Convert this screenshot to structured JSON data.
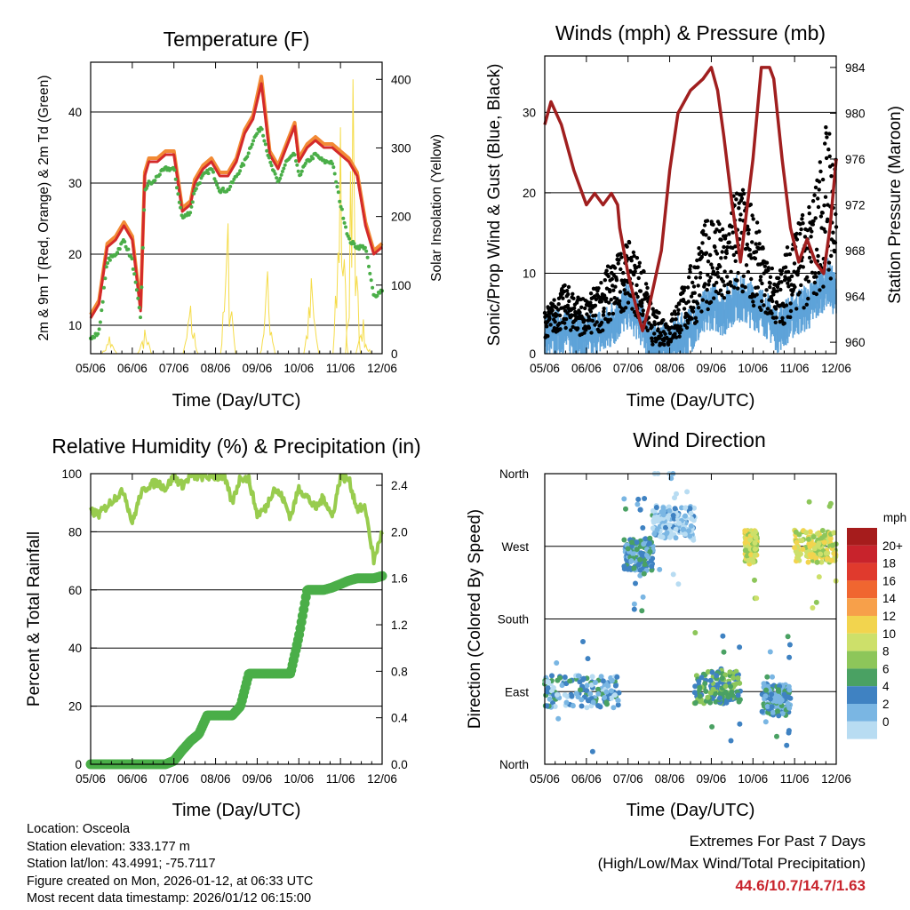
{
  "colors": {
    "temp_2m": "#d42a2a",
    "temp_9m": "#f28a35",
    "dewpoint": "#4aae48",
    "insolation": "#f5dc4a",
    "wind": "#000000",
    "gust": "#5ea3d9",
    "pressure": "#a01f1f",
    "rh": "#98cc4e",
    "precip": "#4aae48"
  },
  "x_tick_labels": [
    "05/06",
    "06/06",
    "07/06",
    "08/06",
    "09/06",
    "10/06",
    "11/06",
    "12/06"
  ],
  "chart_data": [
    {
      "type": "line",
      "id": "temperature",
      "title": "Temperature (F)",
      "xlabel": "Time (Day/UTC)",
      "ylabel": "2m & 9m T (Red, Orange) & 2m Td (Green)",
      "ylabel_right": "Solar Insolation (Yellow)",
      "ylim": [
        6,
        47
      ],
      "yticks": [
        10,
        20,
        30,
        40
      ],
      "ylim_right": [
        0,
        425
      ],
      "yticks_right": [
        0,
        100,
        200,
        300,
        400
      ],
      "x": [
        0,
        0.2,
        0.4,
        0.6,
        0.8,
        1.0,
        1.2,
        1.3,
        1.4,
        1.5,
        1.6,
        1.8,
        2.0,
        2.2,
        2.4,
        2.5,
        2.7,
        2.9,
        3.1,
        3.3,
        3.5,
        3.7,
        3.9,
        4.1,
        4.3,
        4.5,
        4.7,
        4.9,
        5.0,
        5.2,
        5.4,
        5.6,
        5.8,
        6.0,
        6.2,
        6.4,
        6.6,
        6.8,
        7.0
      ],
      "series": [
        {
          "name": "2m T",
          "values": [
            11,
            13,
            21,
            22,
            24,
            22,
            12,
            31,
            33,
            33,
            33,
            34,
            34,
            26,
            27,
            30,
            32,
            33,
            31,
            31,
            33,
            37,
            39,
            44,
            34,
            32,
            35,
            38,
            33,
            35,
            36,
            35,
            35,
            34,
            33,
            31,
            24,
            20,
            21
          ]
        },
        {
          "name": "9m T",
          "values": [
            11.5,
            13.5,
            21.5,
            22.5,
            24.5,
            22.5,
            12.5,
            31.5,
            33.5,
            33.5,
            33.5,
            34.5,
            34.5,
            26.5,
            27.5,
            30.5,
            32.5,
            33.5,
            31.5,
            31.5,
            33.5,
            37.5,
            39.5,
            45,
            34.5,
            32.5,
            35.5,
            38.5,
            33.5,
            35.5,
            36.5,
            35.5,
            35.5,
            34.5,
            33.5,
            31.5,
            24.5,
            20.5,
            21.5
          ]
        },
        {
          "name": "2m Td",
          "values": [
            8,
            9,
            19,
            20,
            22,
            19,
            11,
            29,
            30,
            30,
            31,
            32,
            32,
            25,
            26,
            29,
            31,
            32,
            29,
            29,
            31,
            33,
            36,
            38,
            33,
            30,
            33,
            34,
            31,
            33,
            34,
            33,
            33,
            27,
            22,
            21,
            21,
            14,
            15
          ]
        },
        {
          "name": "Solar Insolation",
          "axis": "right",
          "day_peaks": [
            [
              0.45,
              25
            ],
            [
              1.3,
              35
            ],
            [
              2.4,
              70
            ],
            [
              3.3,
              190
            ],
            [
              4.25,
              120
            ],
            [
              5.3,
              110
            ],
            [
              6.0,
              330
            ],
            [
              6.3,
              400
            ],
            [
              6.55,
              50
            ]
          ]
        }
      ]
    },
    {
      "type": "scatter",
      "id": "winds",
      "title": "Winds (mph) & Pressure (mb)",
      "xlabel": "Time (Day/UTC)",
      "ylabel": "Sonic/Prop Wind & Gust (Blue, Black)",
      "ylabel_right": "Station Pressure (Maroon)",
      "ylim": [
        0,
        37
      ],
      "yticks": [
        0,
        10,
        20,
        30
      ],
      "ylim_right": [
        959,
        985
      ],
      "yticks_right": [
        960,
        964,
        968,
        972,
        976,
        980,
        984
      ],
      "gust_envelope": {
        "x": [
          0,
          0.5,
          1,
          1.5,
          2,
          2.3,
          2.6,
          3,
          3.5,
          4,
          4.3,
          4.6,
          5,
          5.3,
          5.6,
          6,
          6.4,
          6.8,
          7
        ],
        "values": [
          5,
          8,
          6,
          10,
          13,
          11,
          5,
          4,
          10,
          17,
          14,
          20,
          17,
          11,
          9,
          15,
          17,
          28,
          22
        ]
      },
      "wind_envelope": {
        "x": [
          0,
          0.5,
          1,
          1.5,
          2,
          2.3,
          2.6,
          3,
          3.5,
          4,
          4.3,
          4.6,
          5,
          5.3,
          5.6,
          6,
          6.4,
          6.8,
          7
        ],
        "values": [
          2,
          3,
          2,
          3,
          6,
          4,
          1,
          1,
          3,
          6,
          5,
          7,
          6,
          5,
          3,
          5,
          6,
          9,
          7
        ]
      },
      "series": [
        {
          "name": "Station Pressure",
          "axis": "right",
          "x": [
            0,
            0.15,
            0.4,
            0.7,
            0.9,
            1.0,
            1.2,
            1.4,
            1.6,
            1.75,
            1.8,
            2.0,
            2.2,
            2.35,
            2.5,
            2.8,
            3.0,
            3.2,
            3.5,
            3.8,
            4.0,
            4.15,
            4.3,
            4.5,
            4.7,
            5.0,
            5.2,
            5.4,
            5.5,
            5.7,
            5.9,
            6.1,
            6.3,
            6.5,
            6.7,
            6.85,
            7.0
          ],
          "values": [
            979,
            981,
            979,
            975,
            973,
            972,
            973,
            972,
            973,
            972,
            970,
            966,
            963,
            961,
            963,
            968,
            975,
            980,
            982,
            983,
            984,
            982,
            978,
            972,
            967,
            976,
            984,
            984,
            983,
            976,
            970,
            967,
            969,
            967,
            966,
            970,
            976
          ]
        }
      ]
    },
    {
      "type": "line",
      "id": "rh_precip",
      "title": "Relative Humidity (%) & Precipitation (in)",
      "xlabel": "Time (Day/UTC)",
      "ylabel": "Percent & Total Rainfall",
      "ylim": [
        0,
        100
      ],
      "yticks": [
        0,
        20,
        40,
        60,
        80,
        100
      ],
      "ylim_right": [
        0,
        2.5
      ],
      "yticks_right": [
        "0.0",
        "0.4",
        "0.8",
        "1.2",
        "1.6",
        "2.0",
        "2.4"
      ],
      "x": [
        0,
        0.2,
        0.4,
        0.6,
        0.8,
        1.0,
        1.2,
        1.4,
        1.6,
        1.8,
        2.0,
        2.2,
        2.4,
        2.6,
        2.8,
        3.0,
        3.2,
        3.4,
        3.6,
        3.8,
        4.0,
        4.2,
        4.4,
        4.6,
        4.8,
        5.0,
        5.2,
        5.4,
        5.6,
        5.8,
        6.0,
        6.2,
        6.4,
        6.6,
        6.8,
        7.0
      ],
      "series": [
        {
          "name": "Relative Humidity",
          "values": [
            87,
            86,
            89,
            92,
            94,
            83,
            93,
            96,
            97,
            95,
            99,
            96,
            99,
            99,
            99,
            99,
            99,
            90,
            99,
            98,
            86,
            88,
            95,
            92,
            85,
            95,
            92,
            88,
            92,
            85,
            99,
            98,
            88,
            88,
            70,
            80
          ]
        },
        {
          "name": "Total Precipitation",
          "axis": "right",
          "values": [
            0,
            0,
            0,
            0,
            0,
            0,
            0,
            0,
            0,
            0,
            0.03,
            0.12,
            0.2,
            0.26,
            0.42,
            0.42,
            0.42,
            0.42,
            0.5,
            0.78,
            0.78,
            0.78,
            0.78,
            0.78,
            0.78,
            1.1,
            1.5,
            1.5,
            1.5,
            1.52,
            1.55,
            1.58,
            1.6,
            1.6,
            1.6,
            1.62
          ]
        }
      ]
    },
    {
      "type": "scatter",
      "id": "wind_direction",
      "title": "Wind Direction",
      "xlabel": "Time (Day/UTC)",
      "ylabel": "Direction (Colored By Speed)",
      "yticks": [
        "North",
        "East",
        "South",
        "West",
        "North"
      ],
      "colorbar_title": "mph",
      "colorbar_labels": [
        "20+",
        "18",
        "16",
        "14",
        "12",
        "10",
        "8",
        "6",
        "4",
        "2",
        "0"
      ],
      "colorbar_colors": [
        "#a61c1c",
        "#c8232c",
        "#e03a2d",
        "#f06630",
        "#f7a04a",
        "#f2d44e",
        "#cde06a",
        "#8dc65a",
        "#4aa163",
        "#3f82c2",
        "#7ab6e3",
        "#b8dcf2"
      ],
      "clusters": [
        {
          "x": [
            0,
            1.8
          ],
          "dir_deg": 90,
          "speed": 3
        },
        {
          "x": [
            1.9,
            2.6
          ],
          "dir_deg": 260,
          "speed": 4
        },
        {
          "x": [
            2.6,
            3.6
          ],
          "dir_deg": 300,
          "speed": 1
        },
        {
          "x": [
            3.6,
            4.7
          ],
          "dir_deg": 95,
          "speed": 6
        },
        {
          "x": [
            4.8,
            5.1
          ],
          "dir_deg": 270,
          "speed": 10
        },
        {
          "x": [
            5.2,
            5.9
          ],
          "dir_deg": 80,
          "speed": 4
        },
        {
          "x": [
            6.0,
            7.0
          ],
          "dir_deg": 270,
          "speed": 10
        }
      ]
    }
  ],
  "info": {
    "location": "Location: Osceola",
    "elevation": "Station elevation: 333.177 m",
    "latlon": "Station lat/lon: 43.4991; -75.7117",
    "created": "Figure created on Mon, 2026-01-12, at 06:33 UTC",
    "recent": "Most recent data timestamp: 2026/01/12 06:15:00"
  },
  "extremes": {
    "line1": "Extremes For Past 7 Days",
    "line2": "(High/Low/Max Wind/Total Precipitation)",
    "values": "44.6/10.7/14.7/1.63"
  }
}
